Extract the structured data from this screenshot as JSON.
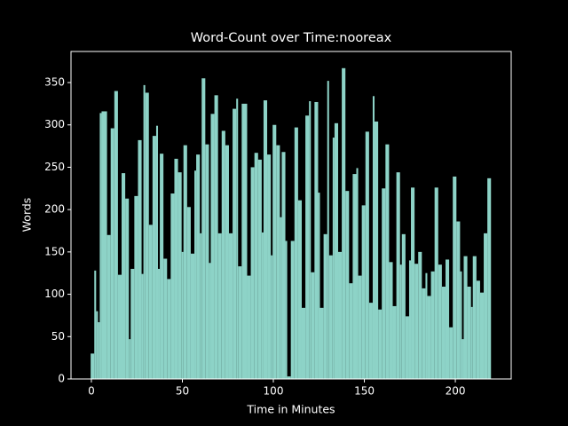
{
  "chart_data": {
    "type": "bar",
    "title": "Word-Count over Time:nooreax",
    "xlabel": "Time in Minutes",
    "ylabel": "Words",
    "color": "#8dd3c7",
    "x": [
      0,
      2,
      3,
      4,
      5,
      6,
      9,
      11,
      13,
      15,
      17,
      19,
      21,
      22,
      24,
      26,
      28,
      29,
      30,
      32,
      34,
      36,
      37,
      38,
      40,
      42,
      44,
      46,
      48,
      50,
      51,
      53,
      55,
      57,
      58,
      60,
      61,
      63,
      65,
      66,
      68,
      70,
      72,
      74,
      76,
      78,
      80,
      81,
      83,
      86,
      88,
      90,
      92,
      94,
      95,
      97,
      99,
      100,
      102,
      104,
      105,
      107,
      108,
      110,
      112,
      114,
      116,
      118,
      120,
      121,
      123,
      125,
      126,
      128,
      130,
      131,
      133,
      134,
      136,
      138,
      140,
      142,
      144,
      146,
      147,
      149,
      151,
      153,
      155,
      156,
      158,
      160,
      162,
      164,
      166,
      168,
      170,
      171,
      173,
      175,
      176,
      178,
      180,
      182,
      184,
      185,
      187,
      189,
      191,
      193,
      195,
      197,
      199,
      201,
      203,
      204,
      205,
      207,
      209,
      210,
      212,
      214,
      216,
      218
    ],
    "values": [
      30,
      128,
      80,
      67,
      314,
      316,
      170,
      296,
      340,
      123,
      243,
      213,
      47,
      130,
      216,
      282,
      124,
      347,
      338,
      182,
      287,
      299,
      130,
      266,
      142,
      118,
      219,
      260,
      244,
      150,
      276,
      203,
      148,
      246,
      265,
      172,
      355,
      277,
      137,
      313,
      335,
      172,
      293,
      276,
      172,
      319,
      331,
      133,
      325,
      122,
      250,
      267,
      259,
      173,
      329,
      265,
      146,
      300,
      276,
      191,
      268,
      163,
      3,
      163,
      297,
      211,
      84,
      311,
      328,
      126,
      327,
      220,
      84,
      171,
      352,
      146,
      285,
      302,
      150,
      367,
      222,
      113,
      242,
      249,
      122,
      205,
      292,
      90,
      334,
      304,
      82,
      225,
      277,
      138,
      86,
      244,
      135,
      171,
      74,
      140,
      226,
      136,
      150,
      107,
      125,
      98,
      127,
      226,
      135,
      109,
      141,
      61,
      239,
      186,
      127,
      47,
      145,
      109,
      85,
      145,
      116,
      102,
      172,
      237
    ],
    "xlim": [
      -11.2,
      230.7
    ],
    "ylim": [
      0,
      386.7
    ],
    "xticks": [
      0,
      50,
      100,
      150,
      200
    ],
    "yticks": [
      0,
      50,
      100,
      150,
      200,
      250,
      300,
      350
    ]
  }
}
